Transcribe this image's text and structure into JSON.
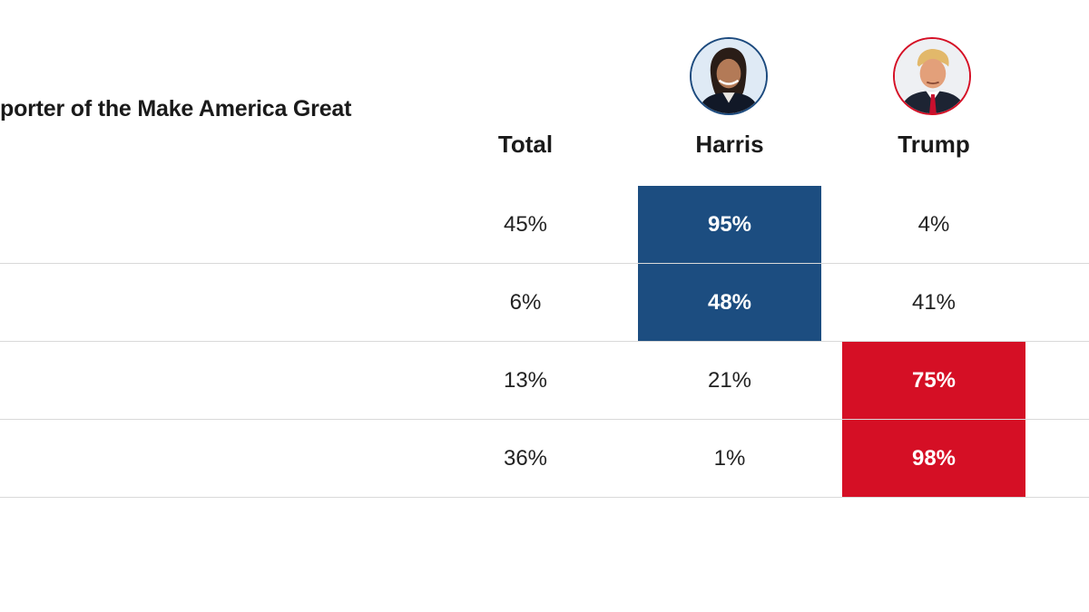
{
  "question": "porter of the Make America Great",
  "columns": {
    "total": "Total",
    "harris": "Harris",
    "trump": "Trump"
  },
  "colors": {
    "harris": "#1c4d80",
    "trump": "#d50f25",
    "row_divider": "#d9d9d9"
  },
  "avatars": {
    "harris": "harris-portrait",
    "trump": "trump-portrait"
  },
  "rows": [
    {
      "total": "45%",
      "harris": "95%",
      "trump": "4%",
      "winner": "harris"
    },
    {
      "total": "6%",
      "harris": "48%",
      "trump": "41%",
      "winner": "harris"
    },
    {
      "total": "13%",
      "harris": "21%",
      "trump": "75%",
      "winner": "trump"
    },
    {
      "total": "36%",
      "harris": "1%",
      "trump": "98%",
      "winner": "trump"
    }
  ]
}
